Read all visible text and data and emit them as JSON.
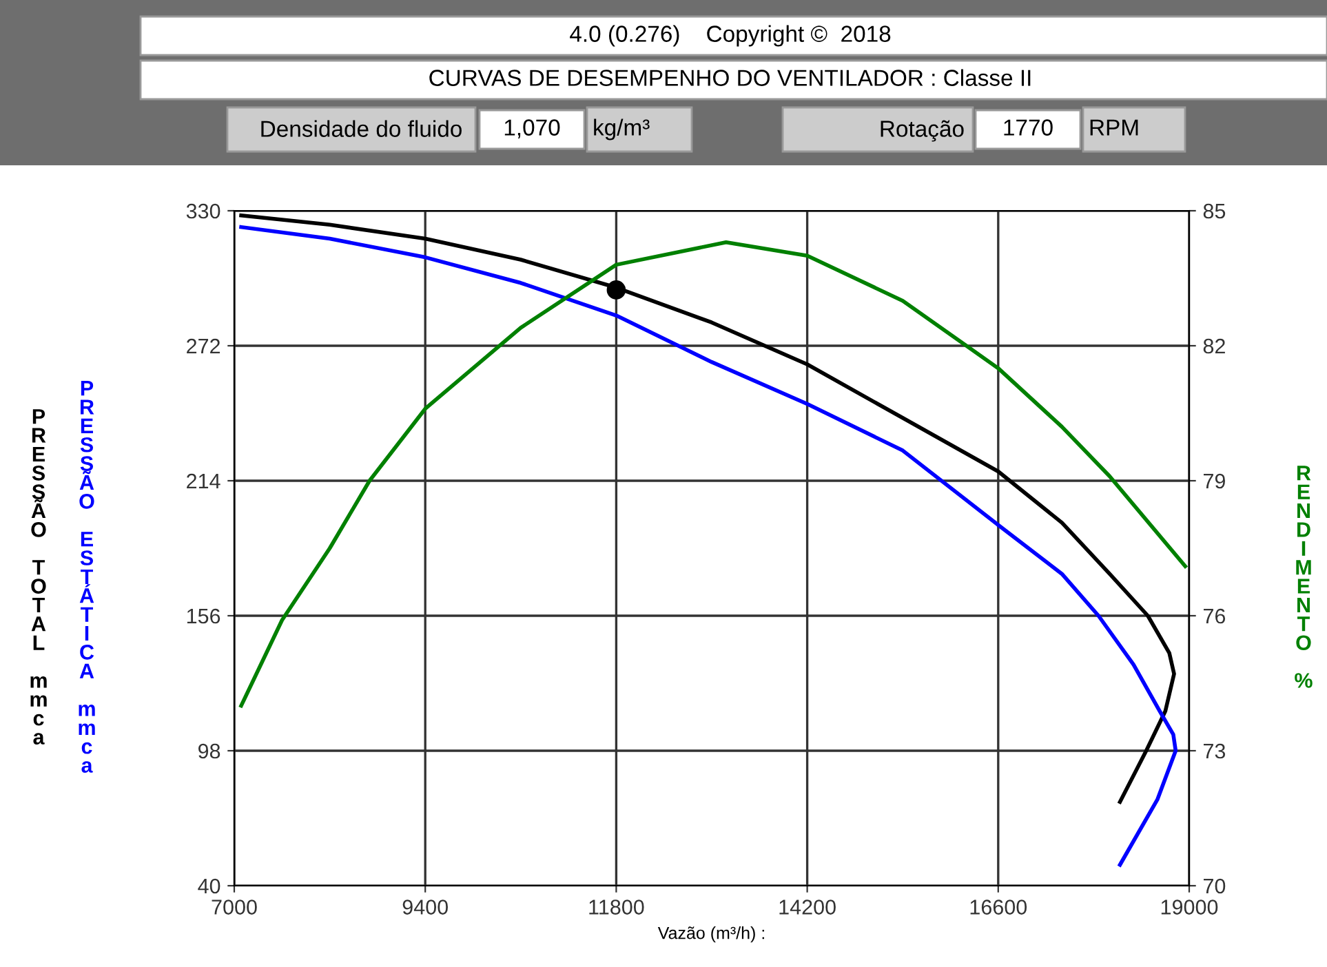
{
  "chart_data": {
    "type": "line",
    "title": "CURVAS DE DESEMPENHO DO VENTILADOR : Classe II",
    "xlabel": "Vazão (m³/h) :",
    "ylabel": "PRESSÃO TOTAL mmca",
    "y2label": "RENDIMENTO %",
    "annotations": [
      "4.0 (0.276)    Copyright ©  2018",
      "Densidade do fluido",
      "1,070",
      "kg/m³",
      "Rotação",
      "1770",
      "RPM",
      "PRESSÃO ESTÁTICA mmca"
    ],
    "xlim": [
      7000,
      19000
    ],
    "xticks": [
      7000,
      9400,
      11800,
      14200,
      16600,
      19000
    ],
    "ylim": [
      40,
      330
    ],
    "yticks": [
      40,
      98,
      156,
      214,
      272,
      330
    ],
    "y2lim": [
      70,
      85
    ],
    "y2ticks": [
      70,
      73,
      76,
      79,
      82,
      85
    ],
    "grid": true,
    "marker": "none",
    "line_style": "solid",
    "series": [
      {
        "color": "#000000",
        "x": [
          7087,
          8200,
          9400,
          10600,
          11800,
          13000,
          14200,
          15400,
          16600,
          17400,
          18000,
          18480,
          18750,
          18810,
          18700,
          18460,
          18130
        ],
        "values": [
          328,
          324,
          318,
          309,
          297,
          282,
          264,
          241,
          218,
          196,
          174,
          156,
          140,
          131,
          115,
          98,
          76
        ]
      },
      {
        "color": "#0000ff",
        "x": [
          7087,
          8200,
          9400,
          10600,
          11800,
          13000,
          14200,
          15400,
          16600,
          17400,
          17860,
          18300,
          18630,
          18800,
          18830,
          18600,
          18130
        ],
        "values": [
          323,
          318,
          310,
          299,
          285,
          265,
          247,
          227,
          195,
          174,
          156,
          135,
          115,
          105,
          98,
          77,
          49
        ]
      },
      {
        "color": "#008000",
        "axis": "y2",
        "x": [
          7087,
          7600,
          8200,
          8700,
          9400,
          10600,
          11800,
          13180,
          14200,
          15400,
          16600,
          17400,
          18000,
          18950
        ],
        "values": [
          74.0,
          75.9,
          77.5,
          79.0,
          80.6,
          82.4,
          83.8,
          84.3,
          84.0,
          83.0,
          81.5,
          80.2,
          79.1,
          77.1
        ]
      },
      {
        "type": "scatter",
        "color": "#000000",
        "marker": "circle",
        "x": [
          11800
        ],
        "values": [
          296
        ]
      }
    ]
  }
}
